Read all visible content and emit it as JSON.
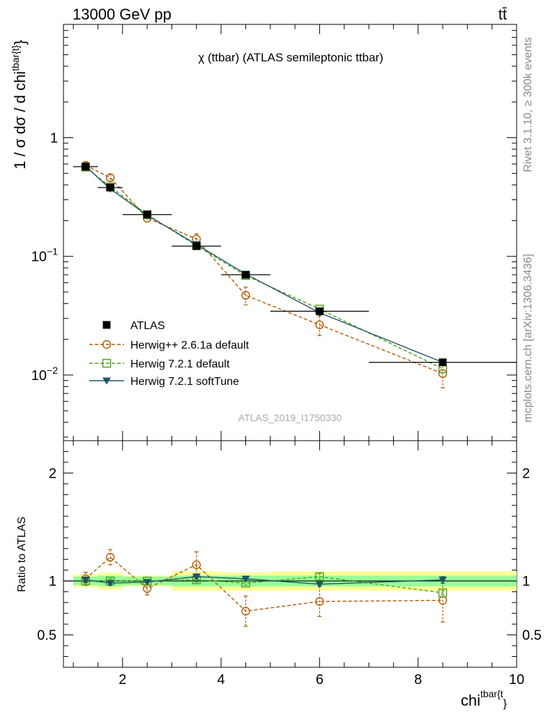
{
  "header": {
    "left": "13000 GeV pp",
    "right": "tt̄"
  },
  "side_text": {
    "rivet": "Rivet 3.1.10, ≥ 300k events",
    "mcplots": "mcplots.cern.ch [arXiv:1306.3436]"
  },
  "main_title": "χ (ttbar) (ATLAS semileptonic ttbar)",
  "watermark": "ATLAS_2019_I1750330",
  "colors": {
    "atlas": "#000000",
    "herwigpp": "#b35900",
    "herwig721": "#4c9f1f",
    "softtune": "#1f5566",
    "band_outer": "#ffff99",
    "band_inner": "#99ff99"
  },
  "chart_data": [
    {
      "type": "line",
      "log_y": true,
      "ylabel": "1 / σ dσ / d chi^{tbar{t}}",
      "xlim": [
        0.8,
        10.0
      ],
      "ylim": [
        0.0028,
        9.0
      ],
      "y_ticks": [
        {
          "value": 1.0,
          "label": "1"
        },
        {
          "value": 0.1,
          "label": "10",
          "exp": "−1"
        },
        {
          "value": 0.01,
          "label": "10",
          "exp": "−2"
        }
      ],
      "x": [
        1.25,
        1.75,
        2.5,
        3.5,
        4.5,
        6.0,
        8.5
      ],
      "bins": [
        [
          1.0,
          1.5
        ],
        [
          1.5,
          2.0
        ],
        [
          2.0,
          3.0
        ],
        [
          3.0,
          4.0
        ],
        [
          4.0,
          5.0
        ],
        [
          5.0,
          7.0
        ],
        [
          7.0,
          10.0
        ]
      ],
      "series": [
        {
          "name": "ATLAS",
          "key": "atlas",
          "style": "data",
          "marker": "square-filled",
          "values": [
            0.57,
            0.38,
            0.225,
            0.122,
            0.07,
            0.0345,
            0.0128
          ]
        },
        {
          "name": "Herwig++ 2.6.1a default",
          "key": "herwigpp",
          "style": "dashed",
          "marker": "circle-open",
          "values": [
            0.585,
            0.46,
            0.21,
            0.14,
            0.047,
            0.0265,
            0.0103
          ],
          "errors": [
            0.03,
            0.03,
            0.015,
            0.015,
            0.008,
            0.005,
            0.0025
          ]
        },
        {
          "name": "Herwig 7.2.1 default",
          "key": "herwig721",
          "style": "dashed",
          "marker": "square-open",
          "values": [
            0.565,
            0.385,
            0.225,
            0.123,
            0.069,
            0.036,
            0.0113
          ]
        },
        {
          "name": "Herwig 7.2.1 softTune",
          "key": "softtune",
          "style": "solid",
          "marker": "triangle-down-filled",
          "values": [
            0.575,
            0.37,
            0.222,
            0.126,
            0.071,
            0.0335,
            0.0128
          ]
        }
      ]
    },
    {
      "type": "line",
      "ylabel": "Ratio to ATLAS",
      "xlabel": "chi^{tbar{t}}",
      "xlim": [
        0.8,
        10.0
      ],
      "ylim": [
        0.2,
        2.3
      ],
      "y_ticks": [
        {
          "value": 0.5,
          "label": "0.5"
        },
        {
          "value": 1.0,
          "label": "1"
        },
        {
          "value": 2.0,
          "label": "2"
        }
      ],
      "x_ticks": [
        {
          "value": 2,
          "label": "2"
        },
        {
          "value": 4,
          "label": "4"
        },
        {
          "value": 6,
          "label": "6"
        },
        {
          "value": 8,
          "label": "8"
        },
        {
          "value": 10,
          "label": "10"
        }
      ],
      "x": [
        1.25,
        1.75,
        2.5,
        3.5,
        4.5,
        6.0,
        8.5
      ],
      "bins": [
        [
          1.0,
          1.5
        ],
        [
          1.5,
          2.0
        ],
        [
          2.0,
          3.0
        ],
        [
          3.0,
          4.0
        ],
        [
          4.0,
          5.0
        ],
        [
          5.0,
          7.0
        ],
        [
          7.0,
          10.0
        ]
      ],
      "band_outer": [
        [
          0.94,
          1.06
        ],
        [
          0.92,
          1.08
        ],
        [
          0.95,
          1.05
        ],
        [
          0.91,
          1.09
        ],
        [
          0.91,
          1.08
        ],
        [
          0.91,
          1.09
        ],
        [
          0.91,
          1.09
        ]
      ],
      "band_inner": [
        [
          0.96,
          1.04
        ],
        [
          0.95,
          1.05
        ],
        [
          0.96,
          1.04
        ],
        [
          0.95,
          1.05
        ],
        [
          0.95,
          1.05
        ],
        [
          0.95,
          1.05
        ],
        [
          0.95,
          1.05
        ]
      ],
      "series": [
        {
          "name": "Herwig++ 2.6.1a default",
          "key": "herwigpp",
          "style": "dashed",
          "marker": "circle-open",
          "values": [
            1.02,
            1.22,
            0.93,
            1.15,
            0.72,
            0.81,
            0.82
          ],
          "errors": [
            0.06,
            0.07,
            0.06,
            0.12,
            0.14,
            0.14,
            0.2
          ]
        },
        {
          "name": "Herwig 7.2.1 default",
          "key": "herwig721",
          "style": "dashed",
          "marker": "square-open",
          "values": [
            1.0,
            1.0,
            1.0,
            1.01,
            0.98,
            1.04,
            0.89
          ],
          "errors": [
            0.02,
            0.02,
            0.01,
            0.02,
            0.02,
            0.03,
            0.02
          ]
        },
        {
          "name": "Herwig 7.2.1 softTune",
          "key": "softtune",
          "style": "solid",
          "marker": "triangle-down-filled",
          "values": [
            1.01,
            0.98,
            0.99,
            1.04,
            1.02,
            0.97,
            1.01
          ],
          "errors": [
            0.02,
            0.02,
            0.01,
            0.02,
            0.02,
            0.02,
            0.03
          ]
        }
      ]
    }
  ]
}
